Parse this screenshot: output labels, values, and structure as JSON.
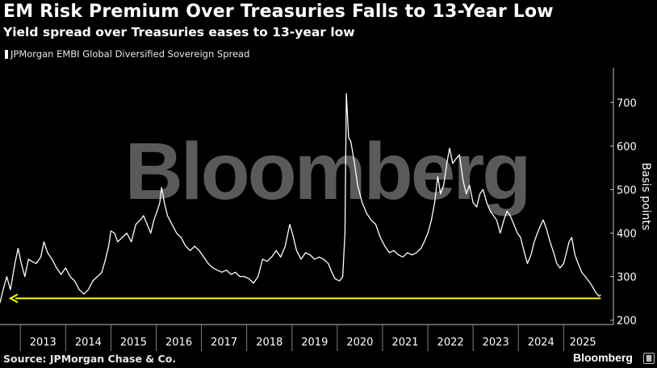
{
  "header": {
    "title": "EM Risk Premium Over Treasuries Falls to 13-Year Low",
    "subtitle": "Yield spread over Treasuries eases to 13-year low"
  },
  "legend": {
    "label": "JPMorgan EMBI Global Diversified Sovereign Spread"
  },
  "footer": {
    "source": "Source: JPMorgan Chase & Co.",
    "brand": "Bloomberg"
  },
  "watermark": "Bloomberg",
  "colors": {
    "background": "#000000",
    "series": "#ffffff",
    "arrow": "#ffff00",
    "axis": "#bfbfbf"
  },
  "chart_data": {
    "type": "line",
    "ylabel": "Basis points",
    "ylim": [
      190,
      780
    ],
    "yticks": [
      200,
      300,
      400,
      500,
      600,
      700
    ],
    "xlim": [
      2012.55,
      2025.85
    ],
    "xticks": [
      "2013",
      "2014",
      "2015",
      "2016",
      "2017",
      "2018",
      "2019",
      "2020",
      "2021",
      "2022",
      "2023",
      "2024",
      "2025"
    ],
    "legend_position": "top-left",
    "grid": false,
    "series": [
      {
        "name": "JPMorgan EMBI Global Diversified Sovereign Spread",
        "points": [
          [
            2012.55,
            240
          ],
          [
            2012.62,
            270
          ],
          [
            2012.7,
            300
          ],
          [
            2012.78,
            270
          ],
          [
            2012.88,
            330
          ],
          [
            2012.95,
            365
          ],
          [
            2013.02,
            330
          ],
          [
            2013.1,
            300
          ],
          [
            2013.18,
            340
          ],
          [
            2013.25,
            335
          ],
          [
            2013.35,
            330
          ],
          [
            2013.45,
            345
          ],
          [
            2013.52,
            380
          ],
          [
            2013.6,
            355
          ],
          [
            2013.7,
            340
          ],
          [
            2013.8,
            320
          ],
          [
            2013.9,
            305
          ],
          [
            2014.0,
            320
          ],
          [
            2014.1,
            300
          ],
          [
            2014.2,
            290
          ],
          [
            2014.3,
            270
          ],
          [
            2014.4,
            260
          ],
          [
            2014.5,
            270
          ],
          [
            2014.6,
            290
          ],
          [
            2014.7,
            300
          ],
          [
            2014.8,
            310
          ],
          [
            2014.88,
            340
          ],
          [
            2014.95,
            370
          ],
          [
            2015.0,
            405
          ],
          [
            2015.08,
            400
          ],
          [
            2015.15,
            380
          ],
          [
            2015.25,
            390
          ],
          [
            2015.35,
            400
          ],
          [
            2015.45,
            380
          ],
          [
            2015.55,
            420
          ],
          [
            2015.65,
            430
          ],
          [
            2015.72,
            440
          ],
          [
            2015.8,
            420
          ],
          [
            2015.88,
            400
          ],
          [
            2015.95,
            430
          ],
          [
            2016.02,
            450
          ],
          [
            2016.08,
            470
          ],
          [
            2016.12,
            505
          ],
          [
            2016.18,
            470
          ],
          [
            2016.25,
            440
          ],
          [
            2016.35,
            420
          ],
          [
            2016.45,
            400
          ],
          [
            2016.55,
            390
          ],
          [
            2016.65,
            370
          ],
          [
            2016.75,
            360
          ],
          [
            2016.85,
            370
          ],
          [
            2016.95,
            360
          ],
          [
            2017.05,
            345
          ],
          [
            2017.15,
            330
          ],
          [
            2017.25,
            320
          ],
          [
            2017.35,
            315
          ],
          [
            2017.45,
            310
          ],
          [
            2017.55,
            315
          ],
          [
            2017.65,
            305
          ],
          [
            2017.75,
            310
          ],
          [
            2017.85,
            300
          ],
          [
            2017.95,
            300
          ],
          [
            2018.05,
            295
          ],
          [
            2018.15,
            285
          ],
          [
            2018.25,
            300
          ],
          [
            2018.35,
            340
          ],
          [
            2018.45,
            335
          ],
          [
            2018.55,
            345
          ],
          [
            2018.65,
            360
          ],
          [
            2018.75,
            345
          ],
          [
            2018.85,
            370
          ],
          [
            2018.95,
            420
          ],
          [
            2019.02,
            395
          ],
          [
            2019.1,
            360
          ],
          [
            2019.2,
            340
          ],
          [
            2019.3,
            355
          ],
          [
            2019.4,
            350
          ],
          [
            2019.5,
            340
          ],
          [
            2019.6,
            345
          ],
          [
            2019.7,
            340
          ],
          [
            2019.8,
            330
          ],
          [
            2019.88,
            310
          ],
          [
            2019.95,
            295
          ],
          [
            2020.05,
            290
          ],
          [
            2020.12,
            300
          ],
          [
            2020.17,
            400
          ],
          [
            2020.2,
            720
          ],
          [
            2020.25,
            620
          ],
          [
            2020.3,
            610
          ],
          [
            2020.38,
            560
          ],
          [
            2020.45,
            510
          ],
          [
            2020.55,
            470
          ],
          [
            2020.65,
            445
          ],
          [
            2020.75,
            430
          ],
          [
            2020.85,
            420
          ],
          [
            2020.95,
            390
          ],
          [
            2021.05,
            370
          ],
          [
            2021.15,
            355
          ],
          [
            2021.25,
            360
          ],
          [
            2021.35,
            350
          ],
          [
            2021.45,
            345
          ],
          [
            2021.55,
            355
          ],
          [
            2021.65,
            350
          ],
          [
            2021.75,
            355
          ],
          [
            2021.85,
            365
          ],
          [
            2021.92,
            380
          ],
          [
            2022.0,
            400
          ],
          [
            2022.08,
            430
          ],
          [
            2022.15,
            470
          ],
          [
            2022.22,
            530
          ],
          [
            2022.28,
            490
          ],
          [
            2022.35,
            510
          ],
          [
            2022.42,
            560
          ],
          [
            2022.48,
            595
          ],
          [
            2022.55,
            560
          ],
          [
            2022.62,
            570
          ],
          [
            2022.7,
            580
          ],
          [
            2022.78,
            520
          ],
          [
            2022.85,
            490
          ],
          [
            2022.92,
            510
          ],
          [
            2023.0,
            470
          ],
          [
            2023.08,
            460
          ],
          [
            2023.15,
            490
          ],
          [
            2023.22,
            500
          ],
          [
            2023.3,
            470
          ],
          [
            2023.38,
            450
          ],
          [
            2023.45,
            440
          ],
          [
            2023.52,
            430
          ],
          [
            2023.6,
            400
          ],
          [
            2023.68,
            430
          ],
          [
            2023.75,
            450
          ],
          [
            2023.82,
            440
          ],
          [
            2023.9,
            420
          ],
          [
            2023.98,
            400
          ],
          [
            2024.05,
            390
          ],
          [
            2024.12,
            360
          ],
          [
            2024.2,
            330
          ],
          [
            2024.28,
            350
          ],
          [
            2024.35,
            380
          ],
          [
            2024.42,
            400
          ],
          [
            2024.5,
            420
          ],
          [
            2024.55,
            430
          ],
          [
            2024.62,
            410
          ],
          [
            2024.7,
            380
          ],
          [
            2024.78,
            355
          ],
          [
            2024.85,
            330
          ],
          [
            2024.92,
            320
          ],
          [
            2025.0,
            330
          ],
          [
            2025.05,
            350
          ],
          [
            2025.12,
            380
          ],
          [
            2025.18,
            390
          ],
          [
            2025.25,
            350
          ],
          [
            2025.32,
            330
          ],
          [
            2025.4,
            310
          ],
          [
            2025.48,
            300
          ],
          [
            2025.55,
            290
          ],
          [
            2025.62,
            280
          ],
          [
            2025.7,
            265
          ],
          [
            2025.78,
            255
          ],
          [
            2025.82,
            258
          ]
        ]
      }
    ],
    "annotations": [
      {
        "type": "arrow",
        "value": 250,
        "from_x": 2025.82,
        "to_x": 2012.78,
        "color": "#ffff00"
      }
    ]
  }
}
